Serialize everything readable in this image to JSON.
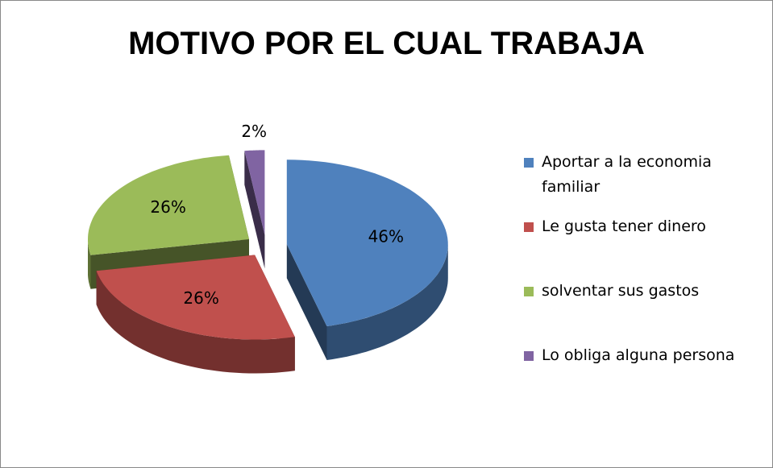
{
  "chart_data": {
    "type": "pie",
    "title": "MOTIVO POR EL CUAL TRABAJA",
    "categories": [
      "Aportar a la economia familiar",
      "Le gusta tener dinero",
      "solventar sus gastos",
      "Lo obliga alguna persona"
    ],
    "values": [
      46,
      26,
      26,
      2
    ],
    "value_labels": [
      "46%",
      "26%",
      "26%",
      "2%"
    ],
    "colors": [
      "#4f81bd",
      "#c0504d",
      "#9bbb59",
      "#8064a2"
    ],
    "legend": "right"
  }
}
